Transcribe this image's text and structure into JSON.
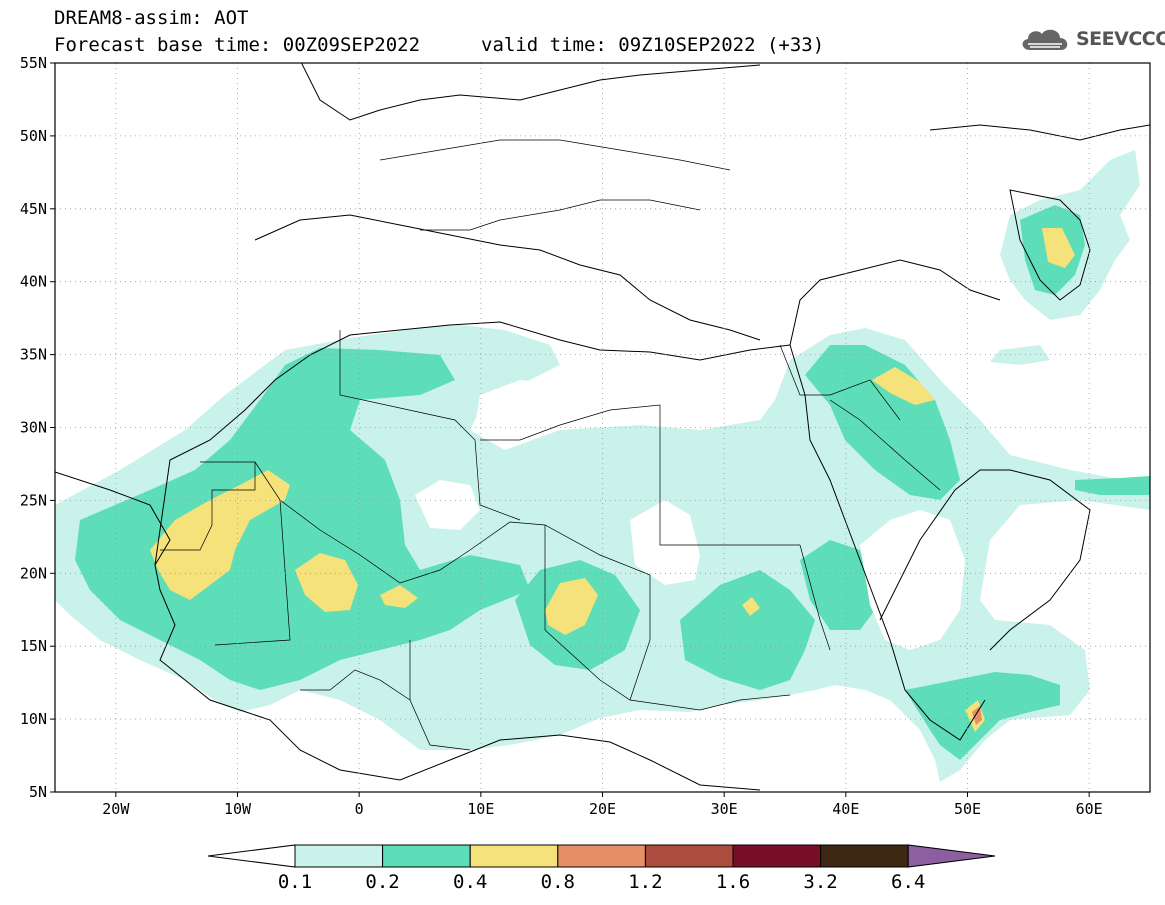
{
  "header": {
    "title_line1": "DREAM8-assim: AOT",
    "title_line2": "Forecast base time: 00Z09SEP2022",
    "title_line3": "valid time: 09Z10SEP2022 (+33)",
    "logo_text": "SEEVCCC",
    "logo_icon": "cloud-icon"
  },
  "map": {
    "lat_labels": [
      "55N",
      "50N",
      "45N",
      "40N",
      "35N",
      "30N",
      "25N",
      "20N",
      "15N",
      "10N",
      "5N"
    ],
    "lon_labels": [
      "20W",
      "10W",
      "0",
      "10E",
      "20E",
      "30E",
      "40E",
      "50E",
      "60E"
    ],
    "extent": {
      "lon_min": -25,
      "lon_max": 65,
      "lat_min": 5,
      "lat_max": 55
    }
  },
  "colorbar": {
    "tick_labels": [
      "0.1",
      "0.2",
      "0.4",
      "0.8",
      "1.2",
      "1.6",
      "3.2",
      "6.4"
    ],
    "colors": [
      "#ffffff",
      "#c9f2ea",
      "#5dddb8",
      "#f5e27a",
      "#e68e66",
      "#ac4c3e",
      "#780f28",
      "#3d2814",
      "#8c5fa0"
    ]
  }
}
